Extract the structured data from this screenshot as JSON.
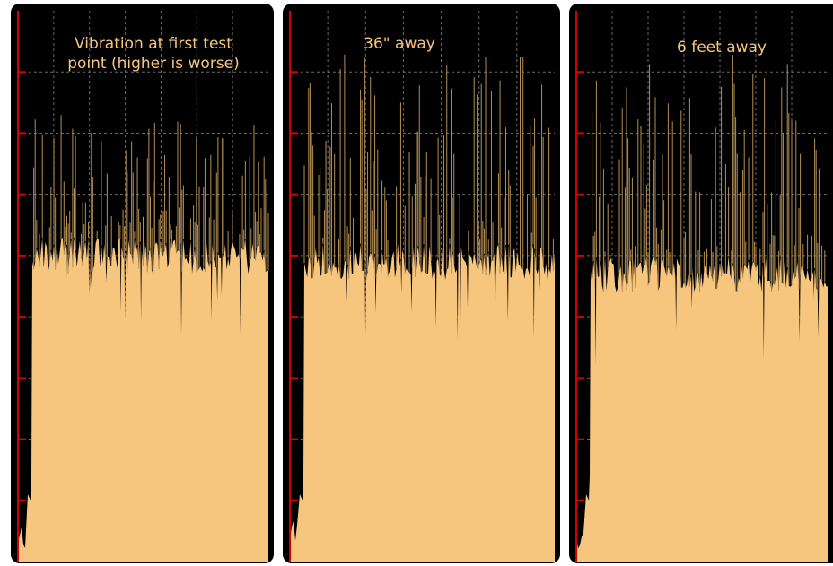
{
  "colors": {
    "background": "#000000",
    "fill": "#f6c57e",
    "spike": "#b58f55",
    "axis": "#d40000",
    "grid": "#6a6a6a"
  },
  "chart_data": [
    {
      "type": "area",
      "title": "Vibration at first test\npoint (higher is worse)",
      "xlabel": "",
      "ylabel": "",
      "ylim": [
        0,
        9
      ],
      "grid": true,
      "baseline": 5.05,
      "noise": 0.45,
      "spike_max": 7.3
    },
    {
      "type": "area",
      "title": "36\" away",
      "xlabel": "",
      "ylabel": "",
      "ylim": [
        0,
        9
      ],
      "grid": true,
      "baseline": 4.95,
      "noise": 0.5,
      "spike_max": 8.3
    },
    {
      "type": "area",
      "title": "6 feet away",
      "xlabel": "",
      "ylabel": "",
      "ylim": [
        0,
        9
      ],
      "grid": true,
      "baseline": 4.75,
      "noise": 0.55,
      "spike_max": 8.3
    }
  ]
}
